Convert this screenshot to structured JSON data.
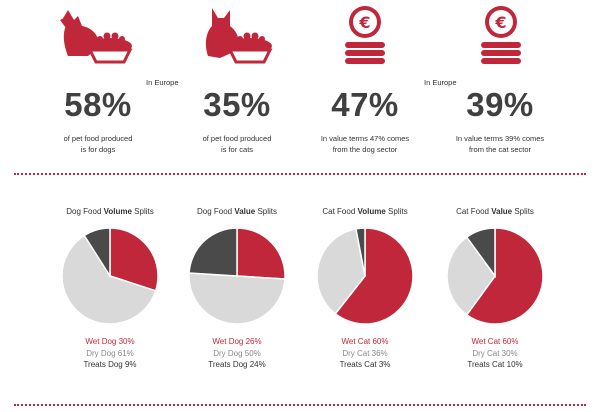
{
  "colors": {
    "red": "#c0273a",
    "gray_light": "#d9d9d9",
    "gray_dark": "#4a4a4a"
  },
  "icons": [
    "dog-bowl-icon",
    "cat-bowl-icon",
    "euro-coins-icon",
    "euro-coins-icon"
  ],
  "region_labels": [
    "In Europe",
    "In Europe"
  ],
  "stats": [
    {
      "value": "58%",
      "desc1": "of pet food produced",
      "desc2": "is for dogs"
    },
    {
      "value": "35%",
      "desc1": "of pet food produced",
      "desc2": "is for cats"
    },
    {
      "value": "47%",
      "desc1": "In value terms 47% comes",
      "desc2": "from the dog sector"
    },
    {
      "value": "39%",
      "desc1": "In value terms 39% comes",
      "desc2": "from the cat sector"
    }
  ],
  "chart_data": [
    {
      "type": "pie",
      "title_pre": "Dog Food ",
      "title_bold": "Volume",
      "title_post": " Splits",
      "slices": [
        {
          "label": "Wet Dog 30%",
          "value": 30,
          "color": "#c0273a"
        },
        {
          "label": "Dry Dog 61%",
          "value": 61,
          "color": "#d9d9d9"
        },
        {
          "label": "Treats Dog 9%",
          "value": 9,
          "color": "#4a4a4a"
        }
      ]
    },
    {
      "type": "pie",
      "title_pre": "Dog Food ",
      "title_bold": "Value",
      "title_post": " Splits",
      "slices": [
        {
          "label": "Wet Dog 26%",
          "value": 26,
          "color": "#c0273a"
        },
        {
          "label": "Dry Dog 50%",
          "value": 50,
          "color": "#d9d9d9"
        },
        {
          "label": "Treats Dog 24%",
          "value": 24,
          "color": "#4a4a4a"
        }
      ]
    },
    {
      "type": "pie",
      "title_pre": "Cat Food ",
      "title_bold": "Volume",
      "title_post": " Splits",
      "slices": [
        {
          "label": "Wet Cat 60%",
          "value": 60,
          "color": "#c0273a"
        },
        {
          "label": "Dry Cat 36%",
          "value": 36,
          "color": "#d9d9d9"
        },
        {
          "label": "Treats Cat 3%",
          "value": 3,
          "color": "#4a4a4a"
        }
      ]
    },
    {
      "type": "pie",
      "title_pre": "Cat Food ",
      "title_bold": "Value",
      "title_post": " Splits",
      "slices": [
        {
          "label": "Wet Cat 60%",
          "value": 60,
          "color": "#c0273a"
        },
        {
          "label": "Dry Cat 30%",
          "value": 30,
          "color": "#d9d9d9"
        },
        {
          "label": "Treats Cat 10%",
          "value": 10,
          "color": "#4a4a4a"
        }
      ]
    }
  ]
}
